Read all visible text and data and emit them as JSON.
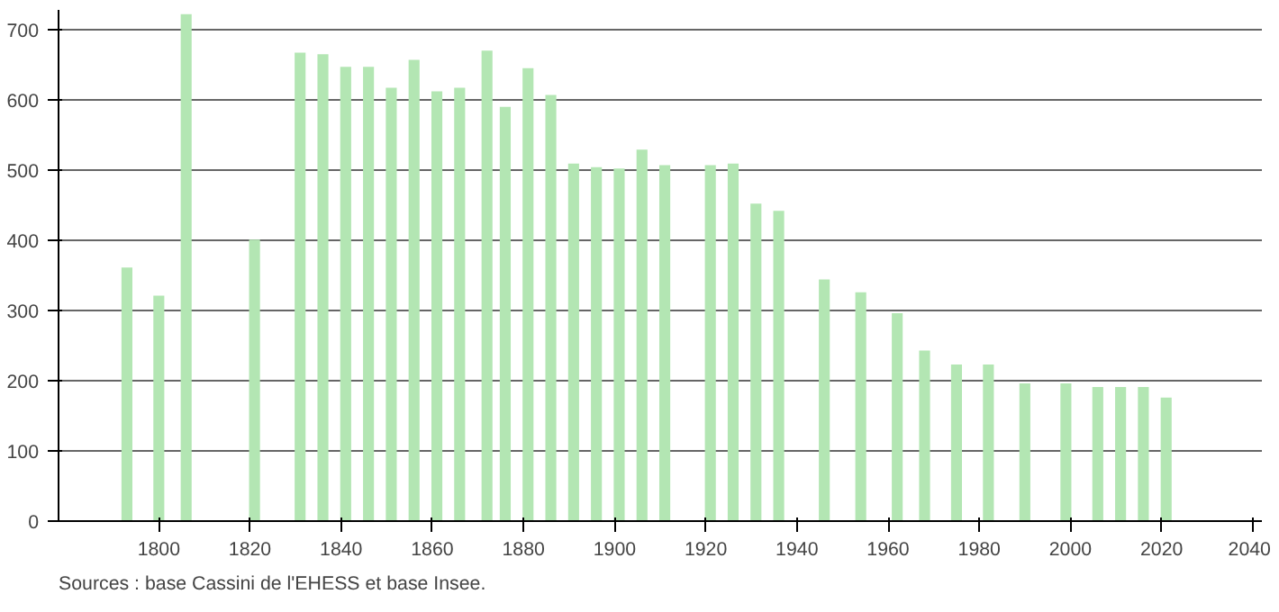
{
  "chart_data": {
    "type": "bar",
    "x": [
      1793,
      1800,
      1806,
      1821,
      1831,
      1836,
      1841,
      1846,
      1851,
      1856,
      1861,
      1866,
      1872,
      1876,
      1881,
      1886,
      1891,
      1896,
      1901,
      1906,
      1911,
      1921,
      1926,
      1931,
      1936,
      1946,
      1954,
      1962,
      1968,
      1975,
      1982,
      1990,
      1999,
      2006,
      2011,
      2016,
      2021
    ],
    "values": [
      361,
      321,
      722,
      401,
      667,
      665,
      647,
      647,
      617,
      657,
      612,
      617,
      670,
      590,
      645,
      607,
      509,
      504,
      502,
      529,
      507,
      507,
      509,
      452,
      442,
      344,
      326,
      296,
      243,
      223,
      223,
      196,
      196,
      191,
      191,
      191,
      176
    ],
    "color": "#b3e6b3",
    "xlim": [
      1778,
      2042
    ],
    "xticks": [
      1800,
      1820,
      1840,
      1860,
      1880,
      1900,
      1920,
      1940,
      1960,
      1980,
      2000,
      2020,
      2040
    ],
    "ylim": [
      0,
      728
    ],
    "yticks": [
      0,
      100,
      200,
      300,
      400,
      500,
      600,
      700
    ],
    "grid": "y",
    "annotations": [
      "Sources : base Cassini de l'EHESS et base Insee."
    ]
  }
}
